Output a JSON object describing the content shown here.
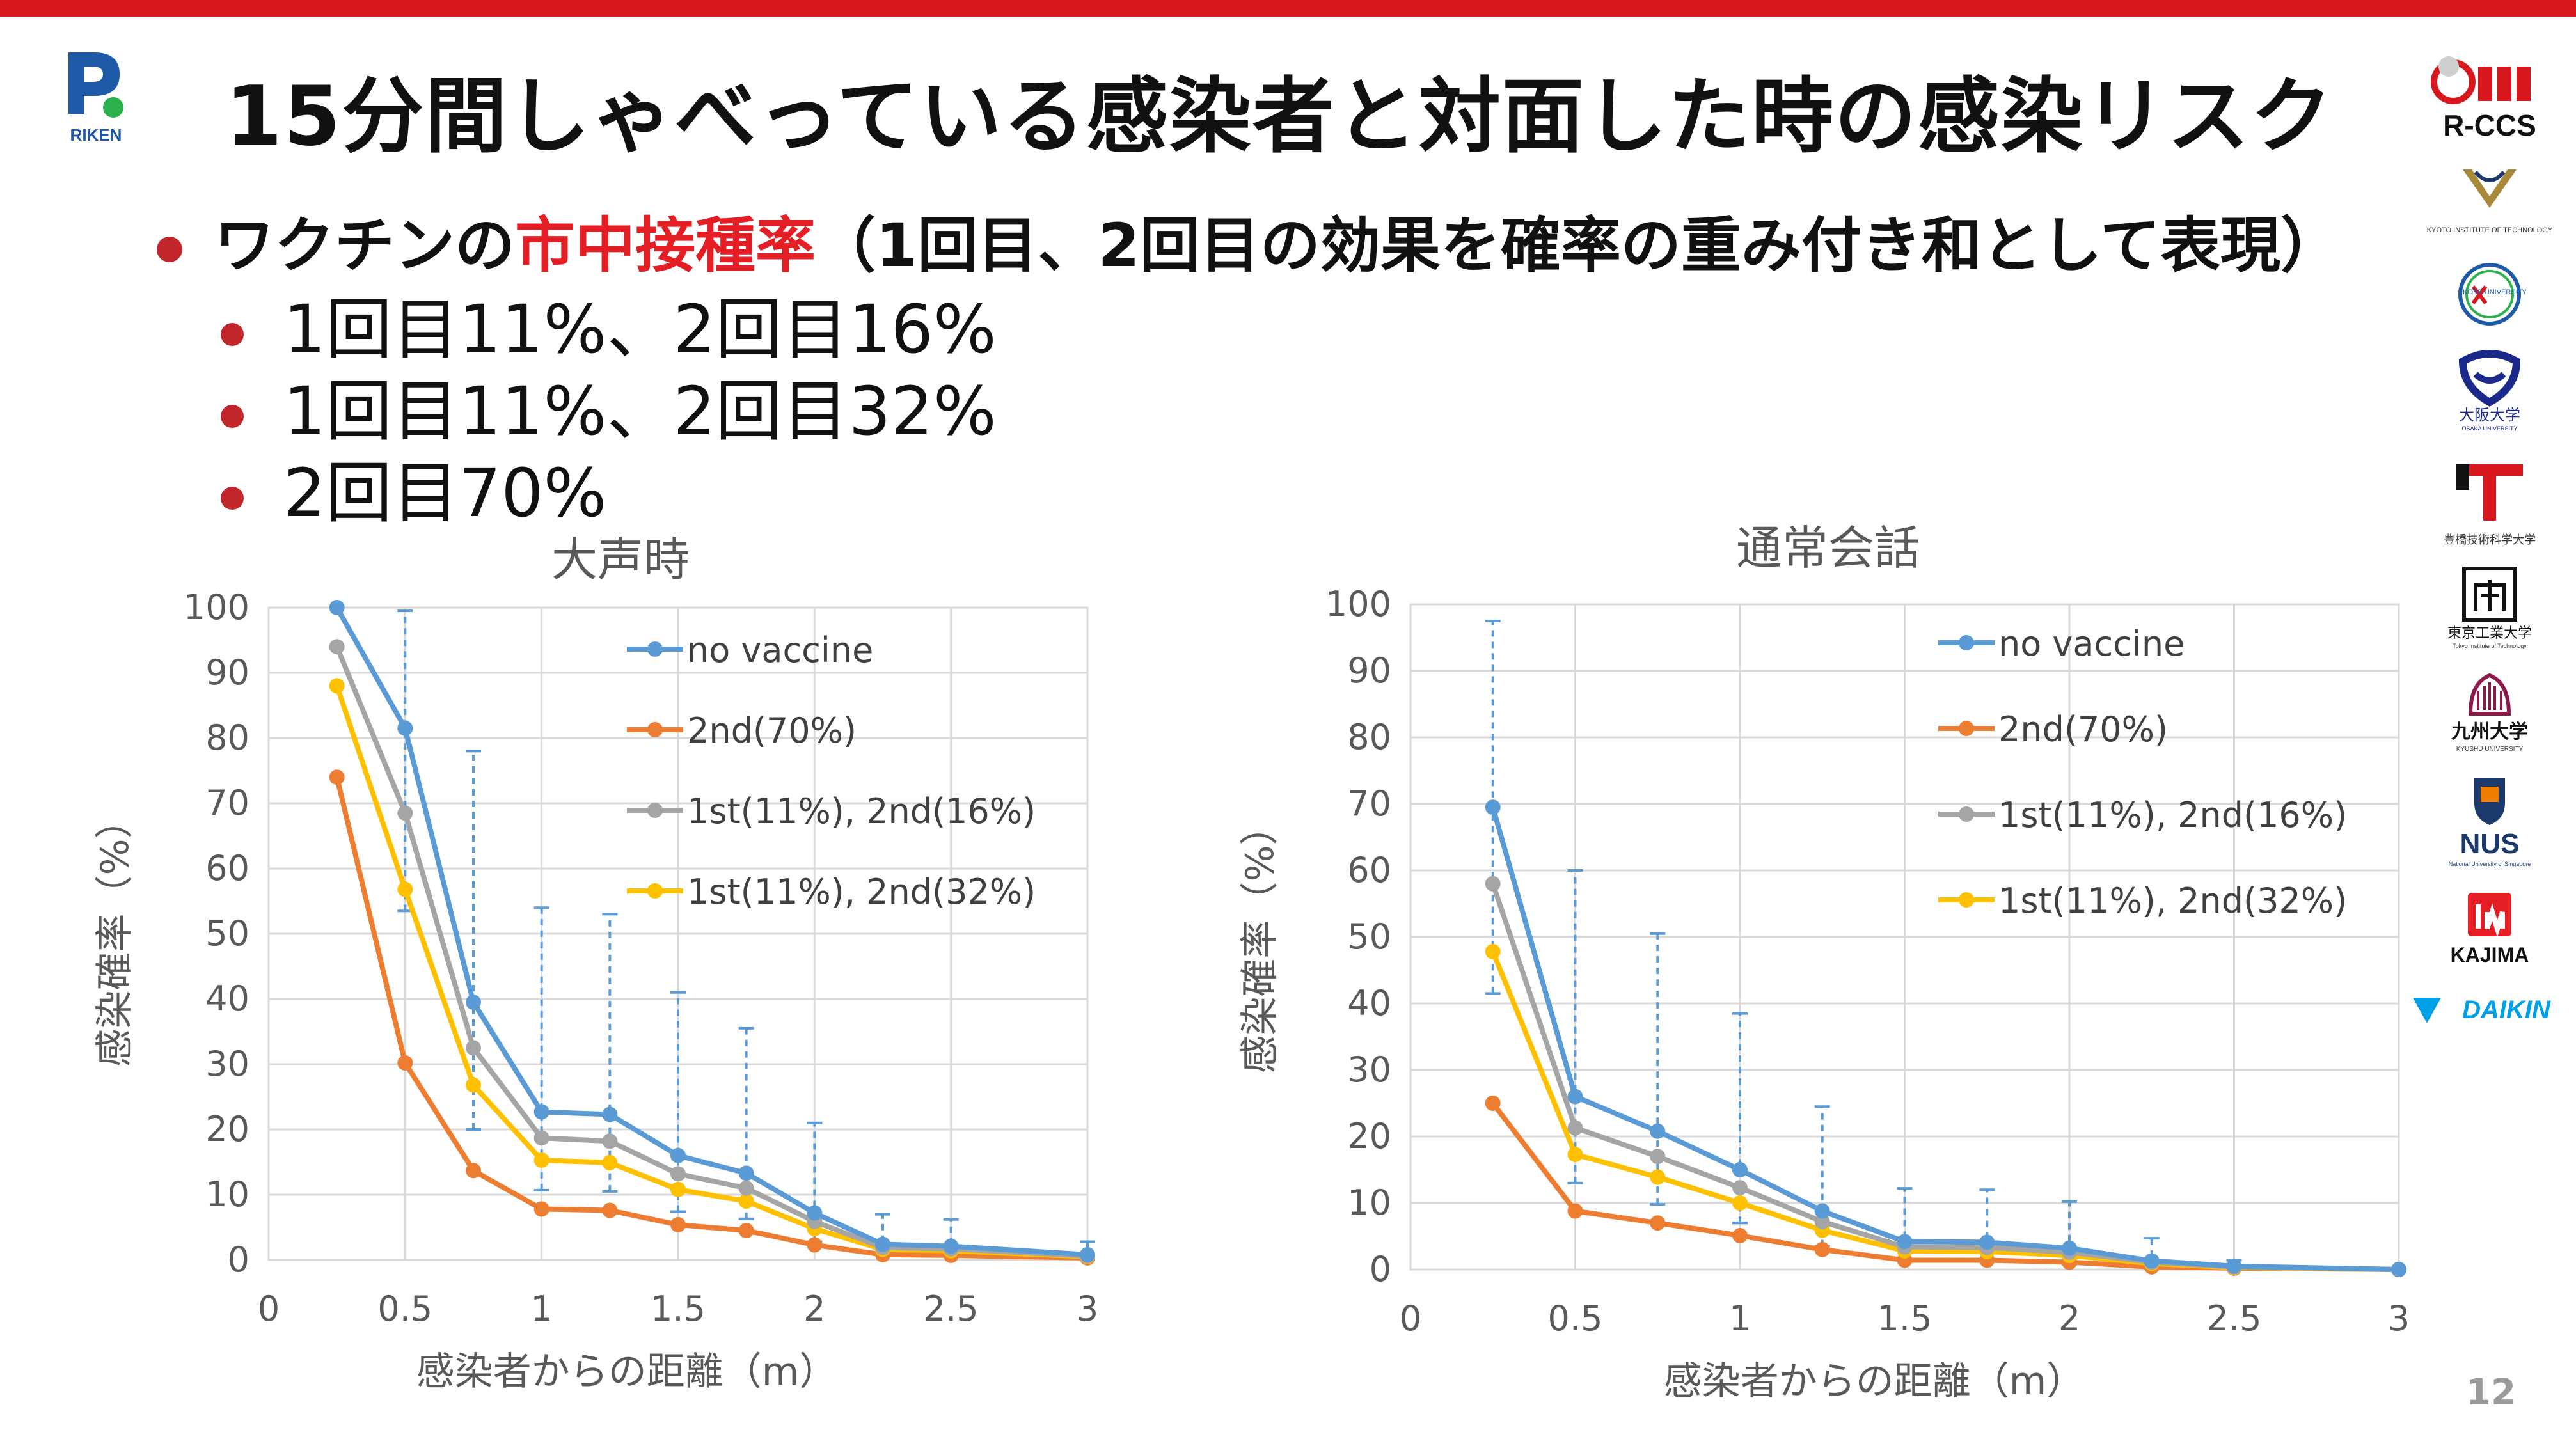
{
  "title": "15分間しゃべっている感染者と対面した時の感染リスク",
  "bullets": {
    "main": {
      "prefix": "ワクチンの",
      "highlight": "市中接種率",
      "suffix": "（1回目、2回目の効果を確率の重み付き和として表現）"
    },
    "sub": [
      "1回目11%、2回目16%",
      "1回目11%、2回目32%",
      "2回目70%"
    ]
  },
  "colors": {
    "top_bar": "#d7191f",
    "bullet_dot": "#c0262b",
    "highlight_text": "#e31e24",
    "no_vaccine": "#5b9bd5",
    "second_70": "#ed7d31",
    "first11_second16": "#a5a5a5",
    "first11_second32": "#ffc000"
  },
  "logos": {
    "riken": {
      "icon": "riken-logo",
      "text": "RIKEN"
    },
    "sidebar": [
      {
        "icon": "rccs-logo",
        "text": "R-CCS"
      },
      {
        "icon": "kyoto-it-logo",
        "text": "KYOTO INSTITUTE OF TECHNOLOGY"
      },
      {
        "icon": "kobe-logo",
        "text": "KOBE UNIVERSITY"
      },
      {
        "icon": "osaka-logo",
        "text": "大阪大学",
        "sub": "OSAKA UNIVERSITY"
      },
      {
        "icon": "toyohashi-logo",
        "text": "豊橋技術科学大学"
      },
      {
        "icon": "tokyo-tech-logo",
        "text": "東京工業大学",
        "sub": "Tokyo Institute of Technology"
      },
      {
        "icon": "kyushu-logo",
        "text": "九州大学",
        "sub": "KYUSHU UNIVERSITY"
      },
      {
        "icon": "nus-logo",
        "text": "NUS",
        "sub": "National University of Singapore"
      },
      {
        "icon": "kajima-logo",
        "text": "KAJIMA"
      },
      {
        "icon": "daikin-logo",
        "text": "DAIKIN"
      }
    ]
  },
  "page_number": "12",
  "chart_data": [
    {
      "type": "line",
      "title": "大声時",
      "xlabel": "感染者からの距離（m）",
      "ylabel": "感染確率（%）",
      "xlim": [
        0,
        3
      ],
      "ylim": [
        0,
        100
      ],
      "x_ticks": [
        "0",
        "0.5",
        "1",
        "1.5",
        "2",
        "2.5",
        "3"
      ],
      "y_ticks": [
        "0",
        "10",
        "20",
        "30",
        "40",
        "50",
        "60",
        "70",
        "80",
        "90",
        "100"
      ],
      "grid": true,
      "legend": "inside-top-right",
      "x": [
        0.25,
        0.5,
        0.75,
        1.0,
        1.25,
        1.5,
        1.75,
        2.0,
        2.25,
        2.5,
        3.0
      ],
      "series": [
        {
          "name": "no vaccine",
          "color": "#5b9bd5",
          "values": [
            100,
            81.5,
            39.5,
            22.7,
            22.3,
            16,
            13.3,
            7.2,
            2.4,
            2.1,
            0.8
          ]
        },
        {
          "name": "2nd(70%)",
          "color": "#ed7d31",
          "values": [
            74,
            30.2,
            13.7,
            7.8,
            7.6,
            5.4,
            4.5,
            2.3,
            0.8,
            0.7,
            0.3
          ]
        },
        {
          "name": "1st(11%), 2nd(16%)",
          "color": "#a5a5a5",
          "values": [
            94,
            68.5,
            32.5,
            18.7,
            18.2,
            13.2,
            11,
            5.9,
            1.9,
            1.7,
            0.6
          ]
        },
        {
          "name": "1st(11%), 2nd(32%)",
          "color": "#ffc000",
          "values": [
            88,
            56.8,
            26.8,
            15.3,
            14.9,
            10.8,
            9,
            4.8,
            1.6,
            1.4,
            0.5
          ]
        }
      ],
      "error_bars": {
        "series": "no vaccine",
        "x": [
          0.5,
          0.75,
          1.0,
          1.25,
          1.5,
          1.75,
          2.0,
          2.25,
          2.5,
          3.0
        ],
        "low": [
          53.5,
          20,
          10.7,
          10.5,
          7.4,
          6.3,
          2.8,
          1,
          0.6,
          0
        ],
        "high": [
          99.5,
          78,
          54,
          53,
          41,
          35.5,
          21,
          7,
          6.2,
          2.8
        ]
      }
    },
    {
      "type": "line",
      "title": "通常会話",
      "xlabel": "感染者からの距離（m）",
      "ylabel": "感染確率（%）",
      "xlim": [
        0,
        3
      ],
      "ylim": [
        0,
        100
      ],
      "x_ticks": [
        "0",
        "0.5",
        "1",
        "1.5",
        "2",
        "2.5",
        "3"
      ],
      "y_ticks": [
        "0",
        "10",
        "20",
        "30",
        "40",
        "50",
        "60",
        "70",
        "80",
        "90",
        "100"
      ],
      "grid": true,
      "legend": "inside-top-right",
      "x": [
        0.25,
        0.5,
        0.75,
        1.0,
        1.25,
        1.5,
        1.75,
        2.0,
        2.25,
        2.5,
        3.0
      ],
      "series": [
        {
          "name": "no vaccine",
          "color": "#5b9bd5",
          "values": [
            69.5,
            26,
            20.8,
            15,
            8.8,
            4.2,
            4.1,
            3.2,
            1.3,
            0.5,
            0
          ]
        },
        {
          "name": "2nd(70%)",
          "color": "#ed7d31",
          "values": [
            25,
            8.8,
            7,
            5.1,
            3,
            1.4,
            1.4,
            1.1,
            0.4,
            0.2,
            0
          ]
        },
        {
          "name": "1st(11%), 2nd(16%)",
          "color": "#a5a5a5",
          "values": [
            58,
            21.3,
            17,
            12.3,
            7.2,
            3.4,
            3.3,
            2.6,
            1.1,
            0.4,
            0
          ]
        },
        {
          "name": "1st(11%), 2nd(32%)",
          "color": "#ffc000",
          "values": [
            47.8,
            17.3,
            13.9,
            10,
            5.9,
            2.8,
            2.7,
            2.1,
            0.9,
            0.3,
            0
          ]
        }
      ],
      "error_bars": {
        "series": "no vaccine",
        "x": [
          0.25,
          0.5,
          0.75,
          1.0,
          1.25,
          1.5,
          1.75,
          2.0,
          2.25,
          2.5
        ],
        "low": [
          41.5,
          13,
          9.8,
          7,
          3.5,
          1.3,
          1.2,
          0.8,
          0.2,
          0
        ],
        "high": [
          97.5,
          60,
          50.5,
          38.5,
          24.5,
          12.2,
          12,
          10.2,
          4.7,
          1.4
        ]
      }
    }
  ]
}
